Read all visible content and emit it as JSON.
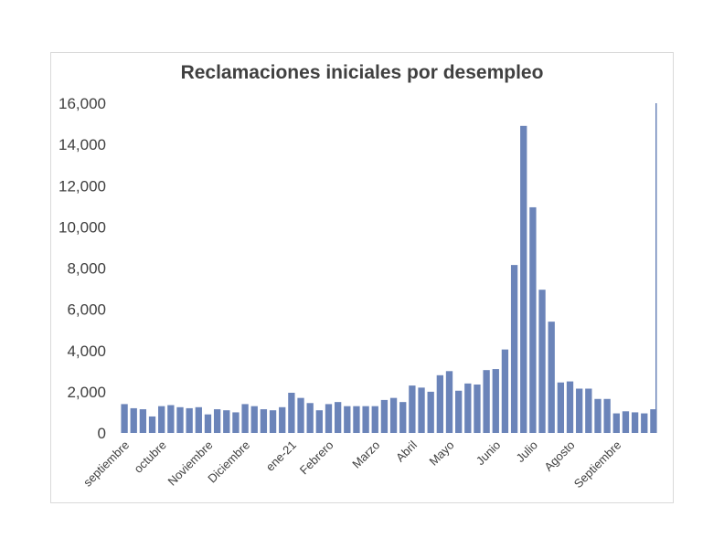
{
  "chart_data": {
    "type": "bar",
    "title": "Reclamaciones iniciales por desempleo",
    "xlabel": "",
    "ylabel": "",
    "ylim": [
      0,
      16000
    ],
    "yticks": [
      "0",
      "2,000",
      "4,000",
      "6,000",
      "8,000",
      "10,000",
      "12,000",
      "14,000",
      "16,000"
    ],
    "grid": false,
    "legend": "none",
    "bar_color": "#6b84b9",
    "x_month_labels": [
      {
        "label": "septiembre",
        "index": 0
      },
      {
        "label": "octubre",
        "index": 4
      },
      {
        "label": "Noviembre",
        "index": 9
      },
      {
        "label": "Diciembre",
        "index": 13
      },
      {
        "label": "ene-21",
        "index": 18
      },
      {
        "label": "Febrero",
        "index": 22
      },
      {
        "label": "Marzo",
        "index": 27
      },
      {
        "label": "Abril",
        "index": 31
      },
      {
        "label": "Mayo",
        "index": 35
      },
      {
        "label": "Junio",
        "index": 40
      },
      {
        "label": "Julio",
        "index": 44
      },
      {
        "label": "Agosto",
        "index": 48
      },
      {
        "label": "Septiembre",
        "index": 53
      }
    ],
    "values": [
      1400,
      1200,
      1150,
      800,
      1300,
      1350,
      1250,
      1200,
      1250,
      900,
      1150,
      1100,
      1000,
      1400,
      1300,
      1150,
      1100,
      1250,
      1950,
      1700,
      1450,
      1100,
      1400,
      1500,
      1300,
      1300,
      1300,
      1300,
      1600,
      1700,
      1500,
      2300,
      2200,
      2000,
      2800,
      3000,
      2050,
      2400,
      2350,
      3050,
      3100,
      4050,
      8150,
      14900,
      10950,
      6950,
      5400,
      2450,
      2500,
      2150,
      2150,
      1650,
      1650,
      950,
      1050,
      1000,
      950,
      1150
    ],
    "extra_bar": {
      "value": 16000
    }
  }
}
